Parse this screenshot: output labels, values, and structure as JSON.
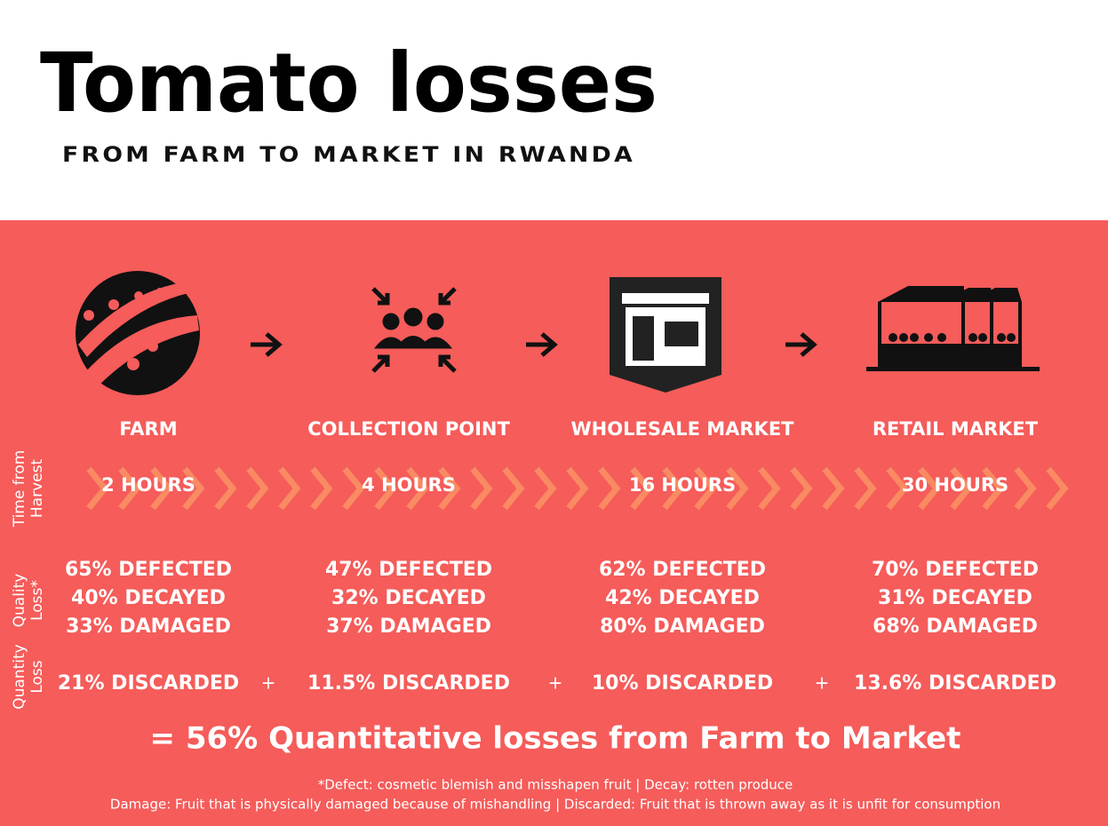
{
  "header": {
    "title": "Tomato losses",
    "subtitle": "FROM FARM TO MARKET IN RWANDA"
  },
  "row_labels": {
    "time": [
      "Time from",
      "Harvest"
    ],
    "quality": [
      "Quality",
      "Loss*"
    ],
    "quantity": [
      "Quantity",
      "Loss"
    ]
  },
  "stages": [
    {
      "name": "FARM",
      "time": "2 HOURS",
      "defected": "65% DEFECTED",
      "decayed": "40% DECAYED",
      "damaged": "33% DAMAGED",
      "discarded": "21% DISCARDED"
    },
    {
      "name": "COLLECTION POINT",
      "time": "4 HOURS",
      "defected": "47% DEFECTED",
      "decayed": "32% DECAYED",
      "damaged": "37% DAMAGED",
      "discarded": "11.5% DISCARDED"
    },
    {
      "name": "WHOLESALE MARKET",
      "time": "16 HOURS",
      "defected": "62% DEFECTED",
      "decayed": "42% DECAYED",
      "damaged": "80% DAMAGED",
      "discarded": "10% DISCARDED"
    },
    {
      "name": "RETAIL MARKET",
      "time": "30 HOURS",
      "defected": "70% DEFECTED",
      "decayed": "31% DECAYED",
      "damaged": "68% DAMAGED",
      "discarded": "13.6% DISCARDED"
    }
  ],
  "operators": [
    "+",
    "+",
    "+"
  ],
  "total": "= 56% Quantitative losses from Farm to Market",
  "footnotes": [
    "*Defect: cosmetic blemish and misshapen fruit | Decay: rotten produce",
    "Damage: Fruit that is physically damaged because of mishandling | Discarded: Fruit that is thrown away as it is unfit for consumption"
  ]
}
